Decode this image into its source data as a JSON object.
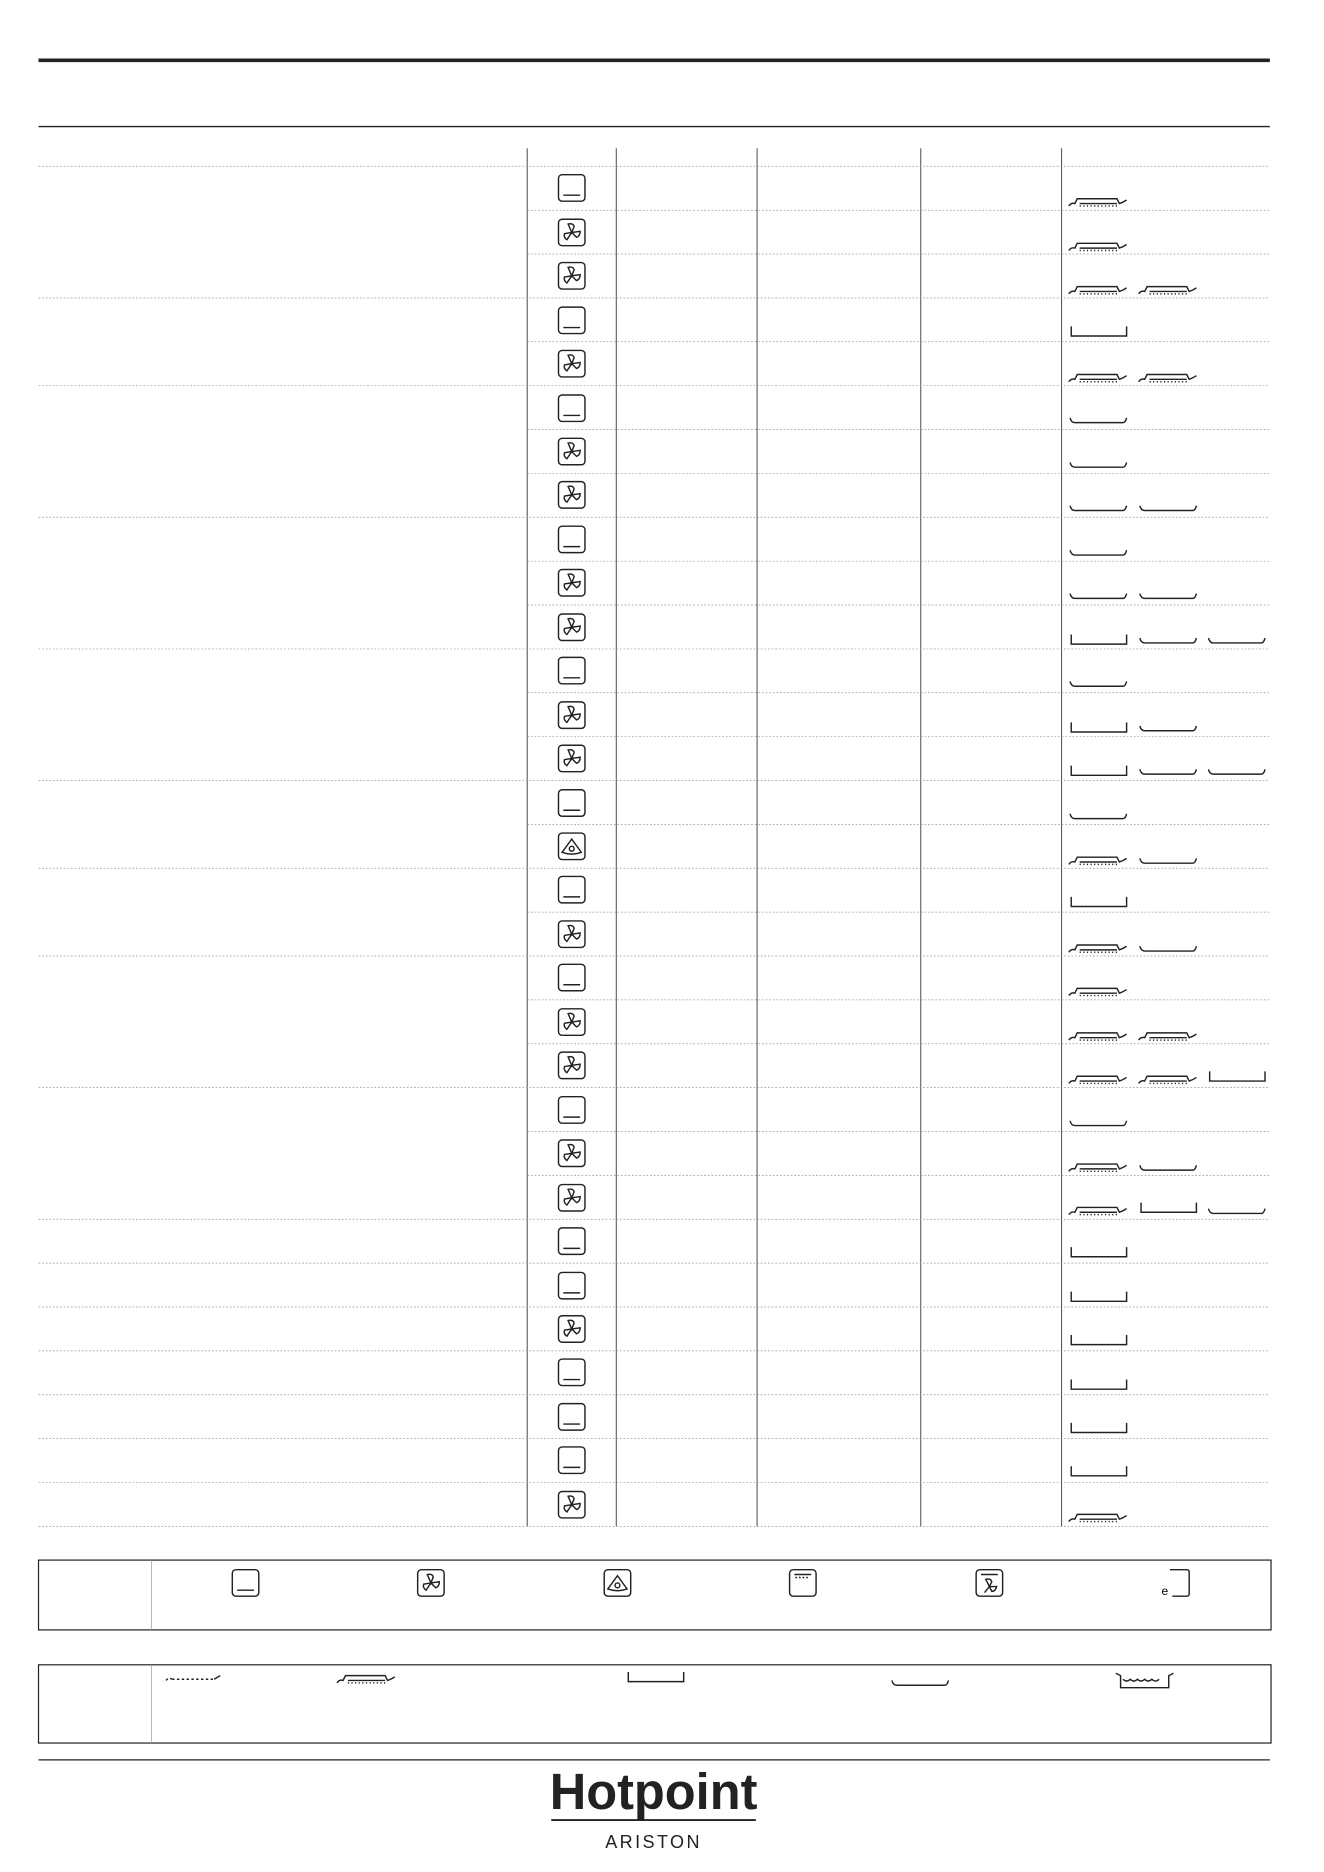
{
  "footer": {
    "brand": "Hotpoint",
    "sub_brand": "ARISTON"
  }
}
